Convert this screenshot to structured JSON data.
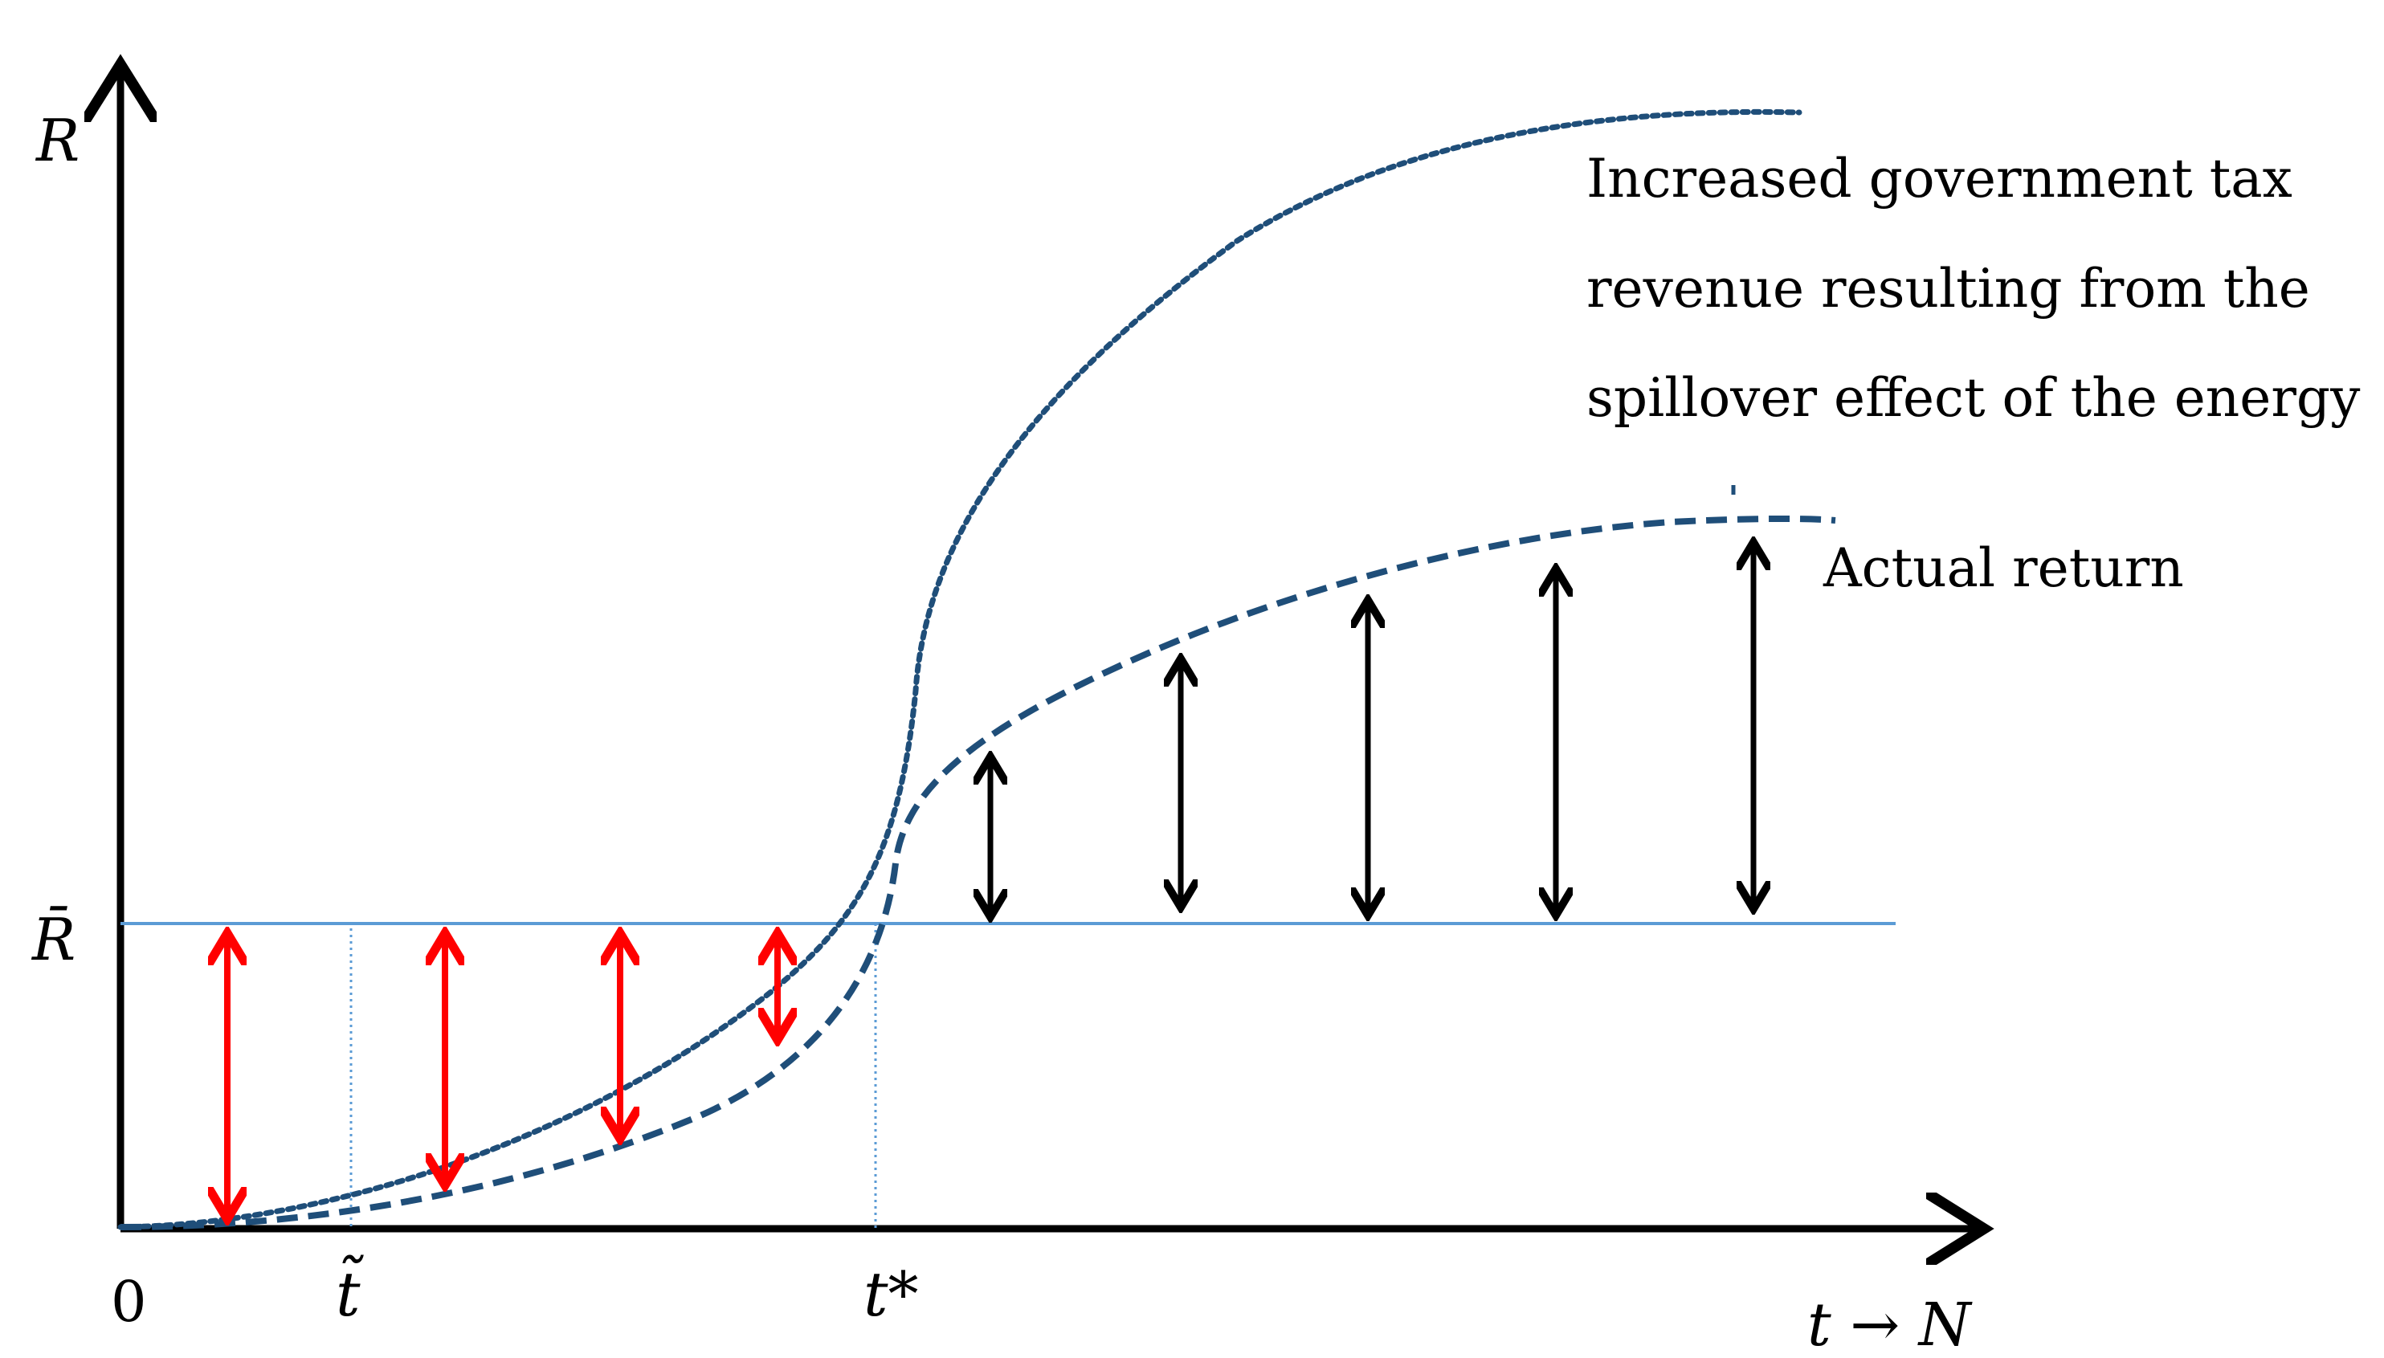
{
  "figure": {
    "y_axis_label": "R",
    "r_bar_label": "R̄",
    "origin_label": "0",
    "t_tilde_label": "t̃",
    "t_star_label": "t*",
    "x_axis_label": "t → N"
  },
  "annotations": {
    "spillover_lines": [
      "Increased government tax",
      "revenue resulting from the",
      "spillover effect of the energy"
    ],
    "actual_return": "Actual return"
  },
  "colors": {
    "axis": "#000000",
    "threshold_line": "#5b9bd5",
    "curve": "#1f4e79",
    "gap_arrow_below": "#ff0000",
    "gap_arrow_above": "#000000"
  },
  "icons": {
    "red_arrows": "double-headed-arrow",
    "black_arrows": "double-headed-arrow"
  }
}
